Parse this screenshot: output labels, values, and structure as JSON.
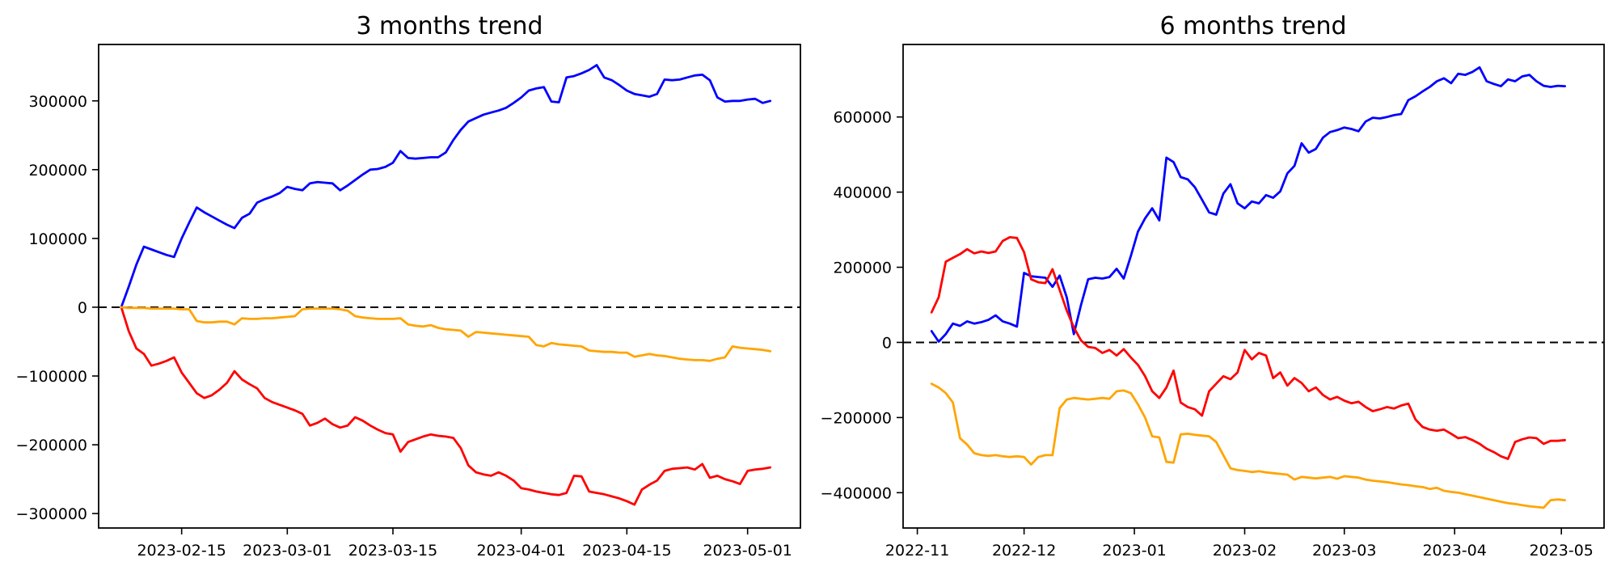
{
  "figure": {
    "background": "#ffffff",
    "line_colors": {
      "blue": "#0000ff",
      "red": "#ff0000",
      "orange": "#ffa500",
      "zero_line": "#000000"
    }
  },
  "chart_data": [
    {
      "type": "line",
      "title": "3 months trend",
      "grid": false,
      "legend": null,
      "zero_line": true,
      "xlim": [
        "2023-02-04",
        "2023-05-08"
      ],
      "ylim": [
        -321000,
        382000
      ],
      "x_ticks": [
        {
          "label": "2023-02-15",
          "date": "2023-02-15"
        },
        {
          "label": "2023-03-01",
          "date": "2023-03-01"
        },
        {
          "label": "2023-03-15",
          "date": "2023-03-15"
        },
        {
          "label": "2023-04-01",
          "date": "2023-04-01"
        },
        {
          "label": "2023-04-15",
          "date": "2023-04-15"
        },
        {
          "label": "2023-05-01",
          "date": "2023-05-01"
        }
      ],
      "y_ticks": [
        {
          "label": "300000",
          "value": 300000
        },
        {
          "label": "200000",
          "value": 200000
        },
        {
          "label": "100000",
          "value": 100000
        },
        {
          "label": "0",
          "value": 0
        },
        {
          "label": "−100000",
          "value": -100000
        },
        {
          "label": "−200000",
          "value": -200000
        },
        {
          "label": "−300000",
          "value": -300000
        }
      ],
      "series": [
        {
          "name": "blue",
          "color": "#0000ff",
          "start_date": "2023-02-07",
          "step_days": 1,
          "values": [
            0,
            30000,
            62000,
            88000,
            84000,
            80000,
            76000,
            73000,
            100000,
            123000,
            145000,
            138000,
            132000,
            126000,
            120000,
            115000,
            130000,
            136000,
            152000,
            157000,
            161000,
            166000,
            175000,
            172000,
            170000,
            180000,
            182000,
            181000,
            180000,
            170000,
            177000,
            185000,
            193000,
            200000,
            201000,
            204000,
            210000,
            227000,
            217000,
            216000,
            217000,
            218000,
            218000,
            225000,
            243000,
            258000,
            270000,
            275000,
            280000,
            283000,
            286000,
            290000,
            297000,
            305000,
            315000,
            318000,
            320000,
            299000,
            298000,
            334000,
            336000,
            340000,
            345000,
            352000,
            334000,
            330000,
            323000,
            315000,
            310000,
            308000,
            306000,
            310000,
            331000,
            330000,
            331000,
            334000,
            337000,
            338000,
            330000,
            305000,
            299000,
            300000,
            300000,
            302000,
            303000,
            297000,
            300000
          ]
        },
        {
          "name": "red",
          "color": "#ff0000",
          "start_date": "2023-02-07",
          "step_days": 1,
          "values": [
            0,
            -35000,
            -60000,
            -68000,
            -85000,
            -82000,
            -78000,
            -73000,
            -95000,
            -110000,
            -125000,
            -132000,
            -128000,
            -120000,
            -110000,
            -93000,
            -105000,
            -112000,
            -118000,
            -132000,
            -138000,
            -142000,
            -146000,
            -150000,
            -155000,
            -172000,
            -168000,
            -162000,
            -170000,
            -175000,
            -172000,
            -160000,
            -165000,
            -172000,
            -178000,
            -183000,
            -185000,
            -210000,
            -196000,
            -192000,
            -188000,
            -185000,
            -187000,
            -188000,
            -190000,
            -205000,
            -230000,
            -240000,
            -243000,
            -245000,
            -240000,
            -245000,
            -252000,
            -263000,
            -265000,
            -268000,
            -270000,
            -272000,
            -273000,
            -270000,
            -245000,
            -246000,
            -268000,
            -270000,
            -272000,
            -275000,
            -278000,
            -282000,
            -287000,
            -265000,
            -258000,
            -252000,
            -238000,
            -235000,
            -234000,
            -233000,
            -236000,
            -228000,
            -248000,
            -245000,
            -250000,
            -253000,
            -257000,
            -238000,
            -236000,
            -235000,
            -233000
          ]
        },
        {
          "name": "orange",
          "color": "#ffa500",
          "start_date": "2023-02-07",
          "step_days": 1,
          "values": [
            0,
            -1000,
            -1000,
            -1000,
            -2000,
            -2000,
            -2000,
            -2000,
            -3000,
            -3000,
            -20000,
            -22000,
            -22000,
            -21000,
            -21000,
            -25000,
            -16000,
            -17000,
            -17000,
            -16000,
            -16000,
            -15000,
            -14000,
            -13000,
            -3000,
            -2000,
            -2000,
            -2000,
            -2000,
            -3000,
            -5000,
            -13000,
            -15000,
            -16000,
            -17000,
            -17000,
            -17000,
            -16000,
            -25000,
            -27000,
            -28000,
            -26000,
            -30000,
            -32000,
            -33000,
            -34000,
            -43000,
            -36000,
            -37000,
            -38000,
            -39000,
            -40000,
            -41000,
            -42000,
            -43000,
            -55000,
            -57000,
            -52000,
            -54000,
            -55000,
            -56000,
            -57000,
            -63000,
            -64000,
            -65000,
            -65000,
            -66000,
            -66000,
            -72000,
            -70000,
            -68000,
            -70000,
            -71000,
            -73000,
            -75000,
            -76000,
            -77000,
            -77000,
            -78000,
            -75000,
            -73000,
            -57000,
            -59000,
            -60000,
            -61000,
            -62000,
            -64000
          ]
        }
      ]
    },
    {
      "type": "line",
      "title": "6 months trend",
      "grid": false,
      "legend": null,
      "zero_line": true,
      "xlim": [
        "2022-10-28",
        "2023-05-13"
      ],
      "ylim": [
        -494000,
        793000
      ],
      "x_ticks": [
        {
          "label": "2022-11",
          "date": "2022-11-01"
        },
        {
          "label": "2022-12",
          "date": "2022-12-01"
        },
        {
          "label": "2023-01",
          "date": "2023-01-01"
        },
        {
          "label": "2023-02",
          "date": "2023-02-01"
        },
        {
          "label": "2023-03",
          "date": "2023-03-01"
        },
        {
          "label": "2023-04",
          "date": "2023-04-01"
        },
        {
          "label": "2023-05",
          "date": "2023-05-01"
        }
      ],
      "y_ticks": [
        {
          "label": "600000",
          "value": 600000
        },
        {
          "label": "400000",
          "value": 400000
        },
        {
          "label": "200000",
          "value": 200000
        },
        {
          "label": "0",
          "value": 0
        },
        {
          "label": "−200000",
          "value": -200000
        },
        {
          "label": "−400000",
          "value": -400000
        }
      ],
      "series": [
        {
          "name": "blue",
          "color": "#0000ff",
          "start_date": "2022-11-05",
          "step_days": 2,
          "values": [
            30000,
            2000,
            22000,
            50000,
            44000,
            56000,
            50000,
            54000,
            60000,
            72000,
            56000,
            50000,
            42000,
            185000,
            176000,
            174000,
            172000,
            148000,
            178000,
            120000,
            22000,
            100000,
            168000,
            172000,
            170000,
            174000,
            196000,
            170000,
            230000,
            295000,
            330000,
            357000,
            325000,
            492000,
            480000,
            440000,
            434000,
            413000,
            380000,
            346000,
            340000,
            396000,
            421000,
            370000,
            357000,
            375000,
            370000,
            392000,
            385000,
            402000,
            450000,
            470000,
            530000,
            505000,
            515000,
            545000,
            560000,
            565000,
            572000,
            568000,
            562000,
            588000,
            598000,
            596000,
            600000,
            605000,
            608000,
            645000,
            655000,
            668000,
            680000,
            695000,
            703000,
            690000,
            715000,
            712000,
            720000,
            732000,
            695000,
            688000,
            682000,
            700000,
            695000,
            708000,
            712000,
            695000,
            683000,
            680000,
            683000,
            682000
          ]
        },
        {
          "name": "red",
          "color": "#ff0000",
          "start_date": "2022-11-05",
          "step_days": 2,
          "values": [
            80000,
            120000,
            215000,
            225000,
            235000,
            248000,
            237000,
            242000,
            238000,
            242000,
            270000,
            280000,
            278000,
            240000,
            168000,
            160000,
            158000,
            195000,
            140000,
            85000,
            40000,
            5000,
            -12000,
            -15000,
            -28000,
            -20000,
            -35000,
            -18000,
            -40000,
            -60000,
            -90000,
            -130000,
            -148000,
            -120000,
            -75000,
            -160000,
            -172000,
            -178000,
            -195000,
            -130000,
            -110000,
            -90000,
            -98000,
            -80000,
            -20000,
            -45000,
            -28000,
            -35000,
            -95000,
            -80000,
            -115000,
            -95000,
            -108000,
            -130000,
            -120000,
            -140000,
            -152000,
            -145000,
            -155000,
            -162000,
            -158000,
            -172000,
            -183000,
            -178000,
            -172000,
            -176000,
            -168000,
            -163000,
            -205000,
            -225000,
            -232000,
            -235000,
            -232000,
            -243000,
            -255000,
            -252000,
            -260000,
            -270000,
            -283000,
            -292000,
            -303000,
            -310000,
            -265000,
            -258000,
            -253000,
            -255000,
            -270000,
            -262000,
            -262000,
            -260000
          ]
        },
        {
          "name": "orange",
          "color": "#ffa500",
          "start_date": "2022-11-05",
          "step_days": 2,
          "values": [
            -110000,
            -120000,
            -135000,
            -160000,
            -255000,
            -272000,
            -295000,
            -300000,
            -302000,
            -300000,
            -303000,
            -305000,
            -303000,
            -305000,
            -325000,
            -305000,
            -300000,
            -300000,
            -175000,
            -152000,
            -148000,
            -150000,
            -152000,
            -150000,
            -148000,
            -150000,
            -130000,
            -128000,
            -135000,
            -165000,
            -200000,
            -250000,
            -253000,
            -318000,
            -320000,
            -245000,
            -243000,
            -246000,
            -248000,
            -250000,
            -265000,
            -300000,
            -335000,
            -340000,
            -342000,
            -345000,
            -343000,
            -346000,
            -348000,
            -350000,
            -352000,
            -365000,
            -358000,
            -360000,
            -362000,
            -360000,
            -358000,
            -363000,
            -356000,
            -358000,
            -360000,
            -365000,
            -368000,
            -370000,
            -372000,
            -375000,
            -378000,
            -380000,
            -383000,
            -385000,
            -390000,
            -387000,
            -395000,
            -398000,
            -400000,
            -404000,
            -408000,
            -412000,
            -416000,
            -420000,
            -424000,
            -428000,
            -430000,
            -433000,
            -436000,
            -438000,
            -440000,
            -420000,
            -418000,
            -420000
          ]
        }
      ]
    }
  ]
}
